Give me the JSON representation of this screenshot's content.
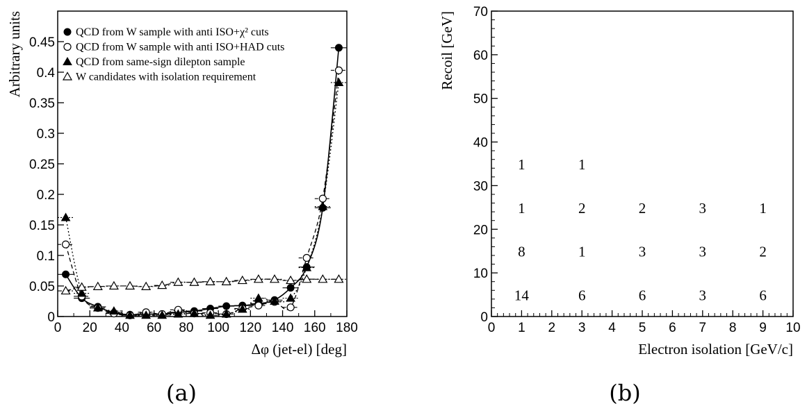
{
  "chart_data": [
    {
      "type": "scatter",
      "panel_label": "(a)",
      "xlabel": "Δφ (jet-el) [deg]",
      "ylabel": "Arbitrary units",
      "xlim": [
        0,
        180
      ],
      "ylim": [
        0,
        0.5
      ],
      "xticks": [
        0,
        20,
        40,
        60,
        80,
        100,
        120,
        140,
        160,
        180
      ],
      "yticks": [
        0,
        0.05,
        0.1,
        0.15,
        0.2,
        0.25,
        0.3,
        0.35,
        0.4,
        0.45
      ],
      "ytick_labels": [
        "0",
        "0.05",
        "0.1",
        "0.15",
        "0.2",
        "0.25",
        "0.3",
        "0.35",
        "0.4",
        "0.45"
      ],
      "legend_position": "top-left",
      "x": [
        5,
        15,
        25,
        35,
        45,
        55,
        65,
        75,
        85,
        95,
        105,
        115,
        125,
        135,
        145,
        155,
        165,
        175
      ],
      "series": [
        {
          "name": "QCD from W sample with anti ISO+χ² cuts",
          "marker": "filled-circle",
          "line": "solid",
          "values": [
            0.069,
            0.03,
            0.016,
            0.006,
            0.003,
            0.004,
            0.004,
            0.007,
            0.009,
            0.013,
            0.017,
            0.018,
            0.021,
            0.027,
            0.047,
            0.081,
            0.178,
            0.44
          ]
        },
        {
          "name": "QCD from W sample with anti ISO+HAD cuts",
          "marker": "open-circle",
          "line": "dashed",
          "values": [
            0.118,
            0.033,
            0.014,
            0.005,
            0.002,
            0.007,
            0.004,
            0.011,
            0.005,
            0.006,
            0.004,
            0.013,
            0.018,
            0.024,
            0.015,
            0.096,
            0.193,
            0.403
          ]
        },
        {
          "name": "QCD from same-sign dilepton sample",
          "marker": "filled-triangle",
          "line": "dotted",
          "values": [
            0.162,
            0.038,
            0.014,
            0.009,
            0.002,
            0.002,
            0.002,
            0.004,
            0.005,
            0.002,
            0.004,
            0.012,
            0.03,
            0.025,
            0.03,
            0.08,
            0.18,
            0.383
          ]
        },
        {
          "name": "W candidates with isolation requirement",
          "marker": "open-triangle",
          "line": "dash-dot",
          "values": [
            0.042,
            0.048,
            0.049,
            0.05,
            0.05,
            0.049,
            0.051,
            0.056,
            0.056,
            0.057,
            0.057,
            0.059,
            0.061,
            0.061,
            0.059,
            0.061,
            0.061,
            0.061
          ]
        }
      ]
    },
    {
      "type": "table",
      "panel_label": "(b)",
      "xlabel": "Electron isolation [GeV/c]",
      "ylabel": "Recoil [GeV]",
      "xlim": [
        0,
        10
      ],
      "ylim": [
        0,
        70
      ],
      "xticks": [
        0,
        1,
        2,
        3,
        4,
        5,
        6,
        7,
        8,
        9,
        10
      ],
      "yticks": [
        0,
        10,
        20,
        30,
        40,
        50,
        60,
        70
      ],
      "cells": [
        {
          "x": 1,
          "y": 5,
          "value": "14"
        },
        {
          "x": 3,
          "y": 5,
          "value": "6"
        },
        {
          "x": 5,
          "y": 5,
          "value": "6"
        },
        {
          "x": 7,
          "y": 5,
          "value": "3"
        },
        {
          "x": 9,
          "y": 5,
          "value": "6"
        },
        {
          "x": 1,
          "y": 15,
          "value": "8"
        },
        {
          "x": 3,
          "y": 15,
          "value": "1"
        },
        {
          "x": 5,
          "y": 15,
          "value": "3"
        },
        {
          "x": 7,
          "y": 15,
          "value": "3"
        },
        {
          "x": 9,
          "y": 15,
          "value": "2"
        },
        {
          "x": 1,
          "y": 25,
          "value": "1"
        },
        {
          "x": 3,
          "y": 25,
          "value": "2"
        },
        {
          "x": 5,
          "y": 25,
          "value": "2"
        },
        {
          "x": 7,
          "y": 25,
          "value": "3"
        },
        {
          "x": 9,
          "y": 25,
          "value": "1"
        },
        {
          "x": 1,
          "y": 35,
          "value": "1"
        },
        {
          "x": 3,
          "y": 35,
          "value": "1"
        }
      ]
    }
  ]
}
